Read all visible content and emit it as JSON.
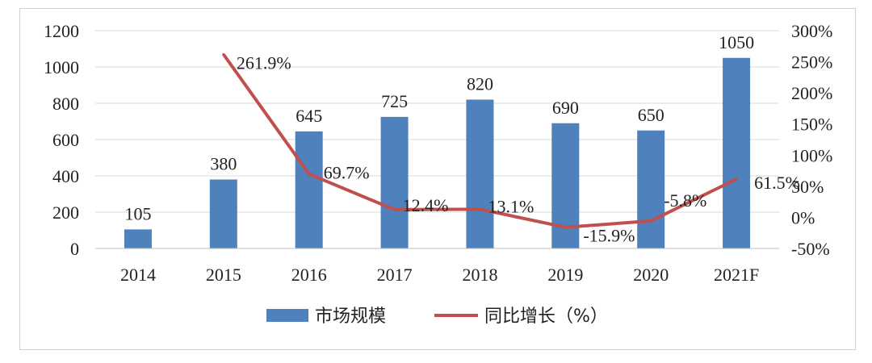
{
  "chart_data": {
    "type": "bar+line",
    "categories": [
      "2014",
      "2015",
      "2016",
      "2017",
      "2018",
      "2019",
      "2020",
      "2021F"
    ],
    "series": [
      {
        "name": "市场规模",
        "type": "bar",
        "axis": "left",
        "values": [
          105,
          380,
          645,
          725,
          820,
          690,
          650,
          1050
        ],
        "labels": [
          "105",
          "380",
          "645",
          "725",
          "820",
          "690",
          "650",
          "1050"
        ]
      },
      {
        "name": "同比增长（%）",
        "type": "line",
        "axis": "right",
        "values": [
          null,
          261.9,
          69.7,
          12.4,
          13.1,
          -15.9,
          -5.8,
          61.5
        ],
        "labels": [
          "",
          "261.9%",
          "69.7%",
          "12.4%",
          "13.1%",
          "-15.9%",
          "-5.8%",
          "61.5%"
        ]
      }
    ],
    "y_left": {
      "min": 0,
      "max": 1200,
      "ticks": [
        "0",
        "200",
        "400",
        "600",
        "800",
        "1000",
        "1200"
      ]
    },
    "y_right": {
      "min": -50,
      "max": 300,
      "ticks": [
        "-50%",
        "0%",
        "50%",
        "100%",
        "150%",
        "200%",
        "250%",
        "300%"
      ]
    },
    "grid": true,
    "legend_position": "bottom",
    "colors": {
      "bar": "#4f81bd",
      "line": "#c0504d",
      "grid": "#d9d9d9"
    }
  }
}
